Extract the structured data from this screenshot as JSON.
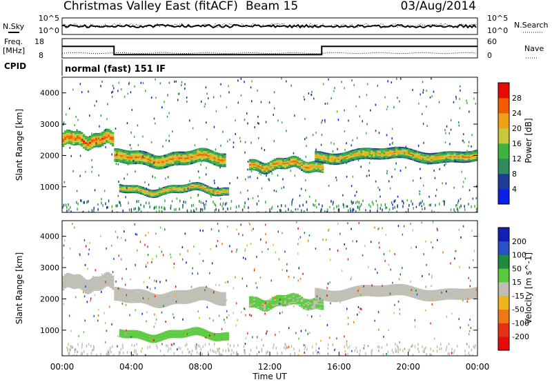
{
  "header": {
    "title": "Christmas Valley East (fitACF)",
    "beam": "Beam 15",
    "date": "03/Aug/2014"
  },
  "panels": {
    "noise": {
      "left_label": "N.Sky",
      "right_label": "N.Search",
      "left_ticks": [
        "10^5",
        "10^0"
      ],
      "right_ticks": [
        "10^5",
        "10^0"
      ]
    },
    "freq": {
      "left_label_1": "Freq.",
      "left_label_2": "[MHz]",
      "right_label": "Nave",
      "left_ticks": [
        "18",
        "8"
      ],
      "right_ticks": [
        "60",
        "0"
      ]
    },
    "cpid": {
      "label": "CPID",
      "text": "normal (fast) 151 IF"
    }
  },
  "power": {
    "ylabel": "Slant Range [km]",
    "yticks": [
      "1000",
      "2000",
      "3000",
      "4000"
    ],
    "cbar_label": "Power [dB]",
    "cbar_ticks": [
      "4",
      "8",
      "12",
      "16",
      "20",
      "24",
      "28"
    ],
    "cbar_colors": [
      "#0a1ee6",
      "#1e3c96",
      "#2d8c5a",
      "#3cb43c",
      "#c8c83c",
      "#f0a014",
      "#f05a00",
      "#e60a00"
    ]
  },
  "velocity": {
    "ylabel": "Slant Range [km]",
    "yticks": [
      "1000",
      "2000",
      "3000",
      "4000"
    ],
    "cbar_label": "Velocity [m s^-1]",
    "cbar_ticks": [
      "200",
      "100",
      "50",
      "15",
      "-15",
      "-50",
      "-100",
      "-200"
    ],
    "cbar_colors": [
      "#141eb4",
      "#2850c8",
      "#1e8c3c",
      "#5ac83c",
      "#bebeb4",
      "#f0b41e",
      "#f07814",
      "#e63214",
      "#e60a0a"
    ]
  },
  "xaxis": {
    "label": "Time UT",
    "ticks": [
      "00:00",
      "04:00",
      "08:00",
      "12:00",
      "16:00",
      "20:00",
      "00:00"
    ]
  },
  "chart_data": {
    "type": "heatmap",
    "title": "Christmas Valley East (fitACF)",
    "subtitle": "Beam 15",
    "date": "03/Aug/2014",
    "xlabel": "Time UT",
    "ylabel": "Slant Range [km]",
    "xlim": [
      0,
      24
    ],
    "ylim": [
      180,
      4500
    ],
    "grid": false,
    "panels": [
      {
        "name": "Power [dB]",
        "scale": [
          0,
          32
        ],
        "features": [
          {
            "t_start": 0.0,
            "t_end": 2.9,
            "range_km": 2500,
            "band_km": 230,
            "value": 26
          },
          {
            "t_start": 3.0,
            "t_end": 9.4,
            "range_km": 1900,
            "band_km": 220,
            "value": 24
          },
          {
            "t_start": 3.3,
            "t_end": 9.6,
            "range_km": 900,
            "band_km": 130,
            "value": 22
          },
          {
            "t_start": 10.8,
            "t_end": 15.0,
            "range_km": 1700,
            "band_km": 180,
            "value": 24
          },
          {
            "t_start": 14.6,
            "t_end": 24.0,
            "range_km": 2000,
            "band_km": 180,
            "value": 22
          }
        ]
      },
      {
        "name": "Velocity [m s^-1]",
        "scale": [
          -200,
          200
        ],
        "features": [
          {
            "t_start": 0.0,
            "t_end": 2.9,
            "range_km": 2500,
            "band_km": 230,
            "value": 0
          },
          {
            "t_start": 3.0,
            "t_end": 9.4,
            "range_km": 2050,
            "band_km": 220,
            "value": 0
          },
          {
            "t_start": 3.3,
            "t_end": 9.6,
            "range_km": 850,
            "band_km": 130,
            "value": 40
          },
          {
            "t_start": 10.8,
            "t_end": 15.0,
            "range_km": 1900,
            "band_km": 180,
            "value": 30
          },
          {
            "t_start": 14.6,
            "t_end": 24.0,
            "range_km": 2200,
            "band_km": 180,
            "value": 0
          }
        ]
      }
    ],
    "frequency_mhz": [
      {
        "t_start": 0.0,
        "t_end": 3.0,
        "value": 15
      },
      {
        "t_start": 3.0,
        "t_end": 15.0,
        "value": 10
      },
      {
        "t_start": 15.0,
        "t_end": 24.0,
        "value": 15
      }
    ],
    "cpid": "normal (fast) 151 IF"
  }
}
